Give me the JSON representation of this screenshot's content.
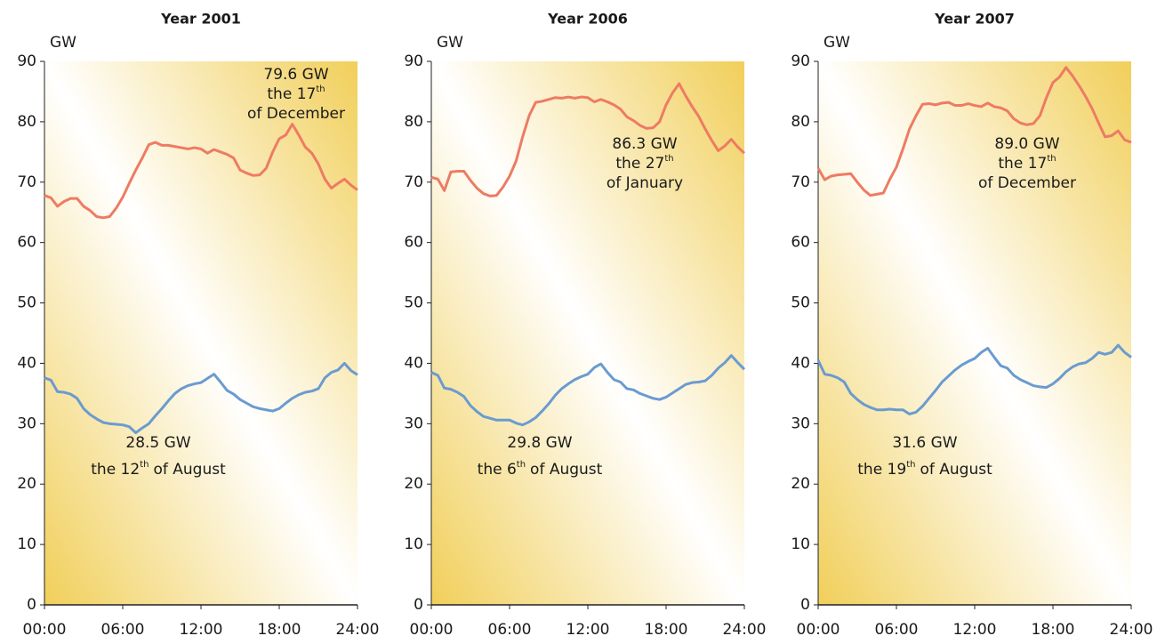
{
  "chart_data": [
    {
      "type": "line",
      "title": "Year 2001",
      "y_label": "GW",
      "x": [
        0,
        0.5,
        1,
        1.5,
        2,
        2.5,
        3,
        3.5,
        4,
        4.5,
        5,
        5.5,
        6,
        6.5,
        7,
        7.5,
        8,
        8.5,
        9,
        9.5,
        10,
        10.5,
        11,
        11.5,
        12,
        12.5,
        13,
        13.5,
        14,
        14.5,
        15,
        15.5,
        16,
        16.5,
        17,
        17.5,
        18,
        18.5,
        19,
        19.5,
        20,
        20.5,
        21,
        21.5,
        22,
        22.5,
        23,
        23.5,
        24
      ],
      "xlim": [
        0,
        24
      ],
      "xticks": [
        {
          "value": 0,
          "label": "00:00"
        },
        {
          "value": 6,
          "label": "06:00"
        },
        {
          "value": 12,
          "label": "12:00"
        },
        {
          "value": 18,
          "label": "18:00"
        },
        {
          "value": 24,
          "label": "24:00"
        }
      ],
      "ylim": [
        0,
        90
      ],
      "yticks": [
        0,
        10,
        20,
        30,
        40,
        50,
        60,
        70,
        80,
        90
      ],
      "series": [
        {
          "color": "#ee7b63",
          "values": [
            67.8,
            67.4,
            66,
            66.8,
            67.3,
            67.3,
            66,
            65.3,
            64.3,
            64.1,
            64.3,
            65.7,
            67.5,
            69.8,
            72,
            74,
            76.2,
            76.6,
            76.1,
            76.1,
            75.9,
            75.7,
            75.5,
            75.7,
            75.5,
            74.8,
            75.4,
            75,
            74.6,
            74,
            72,
            71.5,
            71.1,
            71.2,
            72.3,
            75,
            77.2,
            77.8,
            79.6,
            77.8,
            75.8,
            74.8,
            73,
            70.5,
            69,
            69.8,
            70.5,
            69.5,
            68.7
          ]
        },
        {
          "color": "#6a9bd0",
          "values": [
            37.6,
            37.2,
            35.3,
            35.2,
            34.9,
            34.2,
            32.5,
            31.5,
            30.8,
            30.2,
            30,
            29.9,
            29.8,
            29.5,
            28.5,
            29.3,
            30,
            31.3,
            32.5,
            33.8,
            35,
            35.8,
            36.3,
            36.6,
            36.8,
            37.5,
            38.2,
            36.9,
            35.5,
            34.9,
            34,
            33.4,
            32.8,
            32.5,
            32.3,
            32.1,
            32.5,
            33.4,
            34.2,
            34.8,
            35.2,
            35.4,
            35.8,
            37.6,
            38.5,
            38.9,
            40,
            38.8,
            38.1
          ]
        }
      ],
      "annotations": [
        {
          "text": "79.6 GW",
          "day": "the 17",
          "sup": "th",
          "month": "of December"
        },
        {
          "text": "28.5 GW",
          "day": "the 12",
          "sup": "th",
          "month": "of August"
        }
      ]
    },
    {
      "type": "line",
      "title": "Year 2006",
      "y_label": "GW",
      "x": [
        0,
        0.5,
        1,
        1.5,
        2,
        2.5,
        3,
        3.5,
        4,
        4.5,
        5,
        5.5,
        6,
        6.5,
        7,
        7.5,
        8,
        8.5,
        9,
        9.5,
        10,
        10.5,
        11,
        11.5,
        12,
        12.5,
        13,
        13.5,
        14,
        14.5,
        15,
        15.5,
        16,
        16.5,
        17,
        17.5,
        18,
        18.5,
        19,
        19.5,
        20,
        20.5,
        21,
        21.5,
        22,
        22.5,
        23,
        23.5,
        24
      ],
      "xlim": [
        0,
        24
      ],
      "xticks": [
        {
          "value": 0,
          "label": "00:00"
        },
        {
          "value": 6,
          "label": "06:00"
        },
        {
          "value": 12,
          "label": "12:00"
        },
        {
          "value": 18,
          "label": "18:00"
        },
        {
          "value": 24,
          "label": "24:00"
        }
      ],
      "ylim": [
        0,
        90
      ],
      "yticks": [
        0,
        10,
        20,
        30,
        40,
        50,
        60,
        70,
        80,
        90
      ],
      "series": [
        {
          "color": "#ee7b63",
          "values": [
            70.8,
            70.5,
            68.6,
            71.7,
            71.8,
            71.8,
            70.3,
            69,
            68.1,
            67.7,
            67.8,
            69.2,
            71,
            73.5,
            77.5,
            81,
            83.2,
            83.4,
            83.7,
            84,
            83.9,
            84.1,
            83.9,
            84.1,
            84,
            83.3,
            83.7,
            83.3,
            82.8,
            82.1,
            80.8,
            80.2,
            79.4,
            78.9,
            79,
            80,
            82.8,
            84.8,
            86.3,
            84.3,
            82.5,
            80.9,
            78.8,
            76.9,
            75.2,
            76,
            77.1,
            75.8,
            74.8
          ]
        },
        {
          "color": "#6a9bd0",
          "values": [
            38.5,
            38,
            35.9,
            35.7,
            35.2,
            34.5,
            33,
            32,
            31.2,
            30.9,
            30.6,
            30.6,
            30.6,
            30.1,
            29.8,
            30.3,
            31,
            32.1,
            33.3,
            34.7,
            35.8,
            36.6,
            37.3,
            37.8,
            38.2,
            39.3,
            39.9,
            38.5,
            37.3,
            36.9,
            35.8,
            35.6,
            35,
            34.6,
            34.2,
            34,
            34.4,
            35.1,
            35.8,
            36.5,
            36.8,
            36.9,
            37.1,
            38,
            39.2,
            40.1,
            41.3,
            40.1,
            39
          ]
        }
      ],
      "annotations": [
        {
          "text": "86.3 GW",
          "day": "the 27",
          "sup": "th",
          "month": "of January"
        },
        {
          "text": "29.8 GW",
          "day": "the 6",
          "sup": "th",
          "month": "of August"
        }
      ]
    },
    {
      "type": "line",
      "title": "Year 2007",
      "y_label": "GW",
      "x": [
        0,
        0.5,
        1,
        1.5,
        2,
        2.5,
        3,
        3.5,
        4,
        4.5,
        5,
        5.5,
        6,
        6.5,
        7,
        7.5,
        8,
        8.5,
        9,
        9.5,
        10,
        10.5,
        11,
        11.5,
        12,
        12.5,
        13,
        13.5,
        14,
        14.5,
        15,
        15.5,
        16,
        16.5,
        17,
        17.5,
        18,
        18.5,
        19,
        19.5,
        20,
        20.5,
        21,
        21.5,
        22,
        22.5,
        23,
        23.5,
        24
      ],
      "xlim": [
        0,
        24
      ],
      "xticks": [
        {
          "value": 0,
          "label": "00:00"
        },
        {
          "value": 6,
          "label": "06:00"
        },
        {
          "value": 12,
          "label": "12:00"
        },
        {
          "value": 18,
          "label": "18:00"
        },
        {
          "value": 24,
          "label": "24:00"
        }
      ],
      "ylim": [
        0,
        90
      ],
      "yticks": [
        0,
        10,
        20,
        30,
        40,
        50,
        60,
        70,
        80,
        90
      ],
      "series": [
        {
          "color": "#ee7b63",
          "values": [
            72.3,
            70.4,
            71,
            71.2,
            71.3,
            71.4,
            70,
            68.7,
            67.8,
            68,
            68.2,
            70.5,
            72.5,
            75.5,
            78.8,
            81,
            82.9,
            83,
            82.8,
            83.1,
            83.2,
            82.7,
            82.7,
            83,
            82.7,
            82.5,
            83.1,
            82.5,
            82.3,
            81.8,
            80.5,
            79.8,
            79.5,
            79.7,
            81,
            84,
            86.5,
            87.4,
            89,
            87.6,
            86,
            84.2,
            82.2,
            79.8,
            77.5,
            77.7,
            78.5,
            77,
            76.6
          ]
        },
        {
          "color": "#6a9bd0",
          "values": [
            40.5,
            38.2,
            38,
            37.6,
            36.9,
            35,
            34,
            33.2,
            32.7,
            32.3,
            32.3,
            32.4,
            32.3,
            32.3,
            31.6,
            31.9,
            32.9,
            34.2,
            35.5,
            36.9,
            37.9,
            38.9,
            39.7,
            40.3,
            40.8,
            41.8,
            42.5,
            41,
            39.6,
            39.2,
            38,
            37.3,
            36.8,
            36.3,
            36.1,
            36,
            36.6,
            37.5,
            38.6,
            39.4,
            39.9,
            40.1,
            40.8,
            41.8,
            41.5,
            41.8,
            43,
            41.8,
            41
          ]
        }
      ],
      "annotations": [
        {
          "text": "89.0 GW",
          "day": "the 17",
          "sup": "th",
          "month": "of December"
        },
        {
          "text": "31.6 GW",
          "day": "the 19",
          "sup": "th",
          "month": "of August"
        }
      ]
    }
  ]
}
